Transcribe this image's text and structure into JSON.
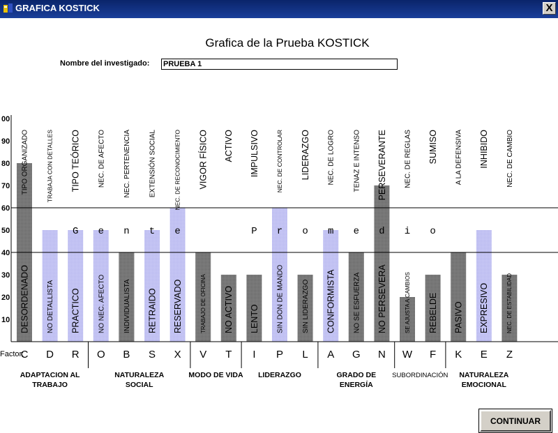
{
  "window": {
    "title": "GRAFICA KOSTICK",
    "close_label": "X"
  },
  "heading": "Grafica de la Prueba KOSTICK",
  "investigated": {
    "label": "Nombre del investigado:",
    "value": "PRUEBA 1"
  },
  "continue_label": "CONTINUAR",
  "factor_label": "Factor:",
  "band_text": [
    "G",
    "e",
    "n",
    "t",
    "e",
    "P",
    "r",
    "o",
    "m",
    "e",
    "d",
    "i",
    "o"
  ],
  "colors": {
    "dark_bar": "#808080",
    "light_bar": "#c8c8f4",
    "title_bar": "#0a246a"
  },
  "chart_data": {
    "type": "bar",
    "ylim": [
      0,
      100
    ],
    "yticks": [
      "10",
      "20",
      "30",
      "40",
      "50",
      "60",
      "70",
      "80",
      "90",
      "00"
    ],
    "reference_lines": [
      40,
      60
    ],
    "columns": [
      {
        "factor": "C",
        "top_label": "TIPO ORGANIZADO",
        "bar_label": "DESORDENADO",
        "value": 80,
        "color": "dark"
      },
      {
        "factor": "D",
        "top_label": "TRABAJA CON DETALLES",
        "bar_label": "NO DETALLISTA",
        "value": 50,
        "color": "light"
      },
      {
        "factor": "R",
        "top_label": "TIPO TEÓRICO",
        "bar_label": "PRACTICO",
        "value": 50,
        "color": "light"
      },
      {
        "factor": "O",
        "top_label": "NEC. DE AFECTO",
        "bar_label": "NO NEC. AFECTO",
        "value": 50,
        "color": "light"
      },
      {
        "factor": "B",
        "top_label": "NEC. PERTENENCIA",
        "bar_label": "INDIVIDUALISTA",
        "value": 40,
        "color": "dark"
      },
      {
        "factor": "S",
        "top_label": "EXTENSIÓN SOCIAL",
        "bar_label": "RETRAIDO",
        "value": 50,
        "color": "light"
      },
      {
        "factor": "X",
        "top_label": "NEC. DE RECONOCIMIENTO",
        "bar_label": "RESERVADO",
        "value": 60,
        "color": "light"
      },
      {
        "factor": "V",
        "top_label": "VIGOR FÍSICO",
        "bar_label": "TRABAJO DE OFICINA",
        "value": 40,
        "color": "dark"
      },
      {
        "factor": "T",
        "top_label": "ACTIVO",
        "bar_label": "NO ACTIVO",
        "value": 30,
        "color": "dark"
      },
      {
        "factor": "I",
        "top_label": "IMPULSIVO",
        "bar_label": "LENTO",
        "value": 30,
        "color": "dark"
      },
      {
        "factor": "P",
        "top_label": "NEC. DE CONTROLAR",
        "bar_label": "SIN DON DE MANDO",
        "value": 60,
        "color": "light"
      },
      {
        "factor": "L",
        "top_label": "LIDERAZGO",
        "bar_label": "SIN LIDERAZGO",
        "value": 30,
        "color": "dark"
      },
      {
        "factor": "A",
        "top_label": "NEC. DE LOGRO",
        "bar_label": "CONFORMISTA",
        "value": 50,
        "color": "light"
      },
      {
        "factor": "G",
        "top_label": "TENAZ E INTENSO",
        "bar_label": "NO SE ESFUERZA",
        "value": 40,
        "color": "dark"
      },
      {
        "factor": "N",
        "top_label": "PERSEVERANTE",
        "bar_label": "NO PERSEVERA",
        "value": 70,
        "color": "dark"
      },
      {
        "factor": "W",
        "top_label": "NEC. DE REGLAS",
        "bar_label": "SE AJUSTA A CAMBIOS",
        "value": 20,
        "color": "dark"
      },
      {
        "factor": "F",
        "top_label": "SUMISO",
        "bar_label": "REBELDE",
        "value": 30,
        "color": "dark"
      },
      {
        "factor": "K",
        "top_label": "A LA DEFENSIVA",
        "bar_label": "PASIVO",
        "value": 40,
        "color": "dark"
      },
      {
        "factor": "E",
        "top_label": "INHIBIDO",
        "bar_label": "EXPRESIVO",
        "value": 50,
        "color": "light"
      },
      {
        "factor": "Z",
        "top_label": "NEC. DE CAMBIO",
        "bar_label": "NEC. DE ESTABILIDAD",
        "value": 30,
        "color": "dark"
      }
    ],
    "groups": [
      {
        "label": "ADAPTACION AL\nTRABAJO"
      },
      {
        "label": "NATURALEZA\nSOCIAL"
      },
      {
        "label": "MODO DE VIDA"
      },
      {
        "label": "LIDERAZGO"
      },
      {
        "label": "GRADO DE\nENERGÍA"
      },
      {
        "label": "SUBORDINACIÓN"
      },
      {
        "label": "NATURALEZA\nEMOCIONAL"
      }
    ]
  }
}
